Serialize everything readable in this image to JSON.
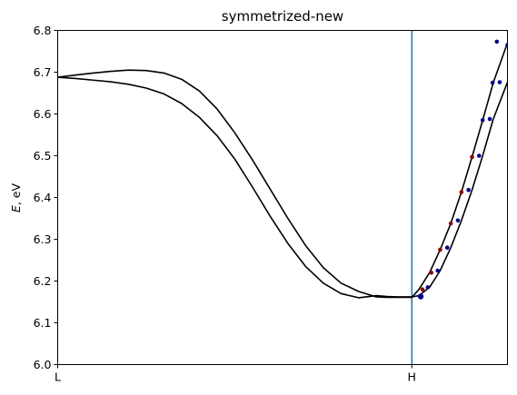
{
  "chart_data": {
    "type": "line",
    "title": "symmetrized-new",
    "xlabel": "",
    "ylabel": "E, eV",
    "ylabel_italic": "E",
    "ylabel_rest": ", eV",
    "ylim": [
      6.0,
      6.8
    ],
    "xlim": [
      0,
      1.27
    ],
    "grid": false,
    "yticks": [
      "6.0",
      "6.1",
      "6.2",
      "6.3",
      "6.4",
      "6.5",
      "6.6",
      "6.7",
      "6.8"
    ],
    "xticks": [
      {
        "label": "L",
        "x": 0
      },
      {
        "label": "H",
        "x": 1.0
      }
    ],
    "vline": {
      "x": 1.0,
      "color": "#1f77b4"
    },
    "line_color": "#000000",
    "series": [
      {
        "x": [
          0,
          0.05,
          0.1,
          0.15,
          0.2,
          0.25,
          0.3,
          0.35,
          0.4,
          0.45,
          0.5,
          0.55,
          0.6,
          0.65,
          0.7,
          0.75,
          0.8,
          0.85,
          0.9,
          0.93,
          0.96,
          0.98,
          1.0,
          1.02,
          1.05,
          1.08,
          1.11,
          1.14,
          1.17,
          1.2,
          1.23,
          1.27
        ],
        "values": [
          6.688,
          6.693,
          6.698,
          6.702,
          6.705,
          6.704,
          6.698,
          6.683,
          6.655,
          6.612,
          6.555,
          6.49,
          6.42,
          6.35,
          6.285,
          6.232,
          6.195,
          6.175,
          6.162,
          6.161,
          6.161,
          6.161,
          6.161,
          6.18,
          6.22,
          6.275,
          6.338,
          6.413,
          6.497,
          6.585,
          6.675,
          6.77
        ]
      },
      {
        "x": [
          0,
          0.05,
          0.1,
          0.15,
          0.2,
          0.25,
          0.3,
          0.35,
          0.4,
          0.45,
          0.5,
          0.55,
          0.6,
          0.65,
          0.7,
          0.75,
          0.8,
          0.85,
          0.9,
          0.93,
          0.96,
          0.98,
          1.0,
          1.02,
          1.05,
          1.08,
          1.11,
          1.14,
          1.17,
          1.2,
          1.23,
          1.27
        ],
        "values": [
          6.688,
          6.685,
          6.681,
          6.677,
          6.671,
          6.662,
          6.648,
          6.625,
          6.592,
          6.548,
          6.492,
          6.425,
          6.355,
          6.29,
          6.235,
          6.195,
          6.17,
          6.16,
          6.165,
          6.163,
          6.162,
          6.162,
          6.162,
          6.165,
          6.185,
          6.225,
          6.28,
          6.345,
          6.418,
          6.5,
          6.588,
          6.676
        ]
      }
    ],
    "markers": [
      {
        "x": 1.025,
        "y": 6.163,
        "color": "#00008b",
        "size": "large"
      },
      {
        "x": 1.045,
        "y": 6.185,
        "color": "#00008b",
        "size": "small"
      },
      {
        "x": 1.073,
        "y": 6.225,
        "color": "#00008b",
        "size": "small"
      },
      {
        "x": 1.1,
        "y": 6.28,
        "color": "#00008b",
        "size": "small"
      },
      {
        "x": 1.13,
        "y": 6.345,
        "color": "#00008b",
        "size": "small"
      },
      {
        "x": 1.16,
        "y": 6.418,
        "color": "#00008b",
        "size": "small"
      },
      {
        "x": 1.19,
        "y": 6.5,
        "color": "#00008b",
        "size": "small"
      },
      {
        "x": 1.22,
        "y": 6.588,
        "color": "#00008b",
        "size": "small"
      },
      {
        "x": 1.248,
        "y": 6.676,
        "color": "#00008b",
        "size": "small"
      },
      {
        "x": 1.03,
        "y": 6.18,
        "color": "#8b0000",
        "size": "small"
      },
      {
        "x": 1.055,
        "y": 6.22,
        "color": "#8b0000",
        "size": "small"
      },
      {
        "x": 1.08,
        "y": 6.275,
        "color": "#8b0000",
        "size": "small"
      },
      {
        "x": 1.11,
        "y": 6.338,
        "color": "#8b0000",
        "size": "small"
      },
      {
        "x": 1.14,
        "y": 6.413,
        "color": "#8b0000",
        "size": "small"
      },
      {
        "x": 1.17,
        "y": 6.497,
        "color": "#8b0000",
        "size": "small"
      },
      {
        "x": 1.2,
        "y": 6.585,
        "color": "#00008b",
        "size": "small"
      },
      {
        "x": 1.228,
        "y": 6.675,
        "color": "#00008b",
        "size": "small"
      },
      {
        "x": 1.24,
        "y": 6.773,
        "color": "#00008b",
        "size": "small"
      },
      {
        "x": 1.27,
        "y": 6.765,
        "color": "#00008b",
        "size": "small"
      }
    ]
  }
}
